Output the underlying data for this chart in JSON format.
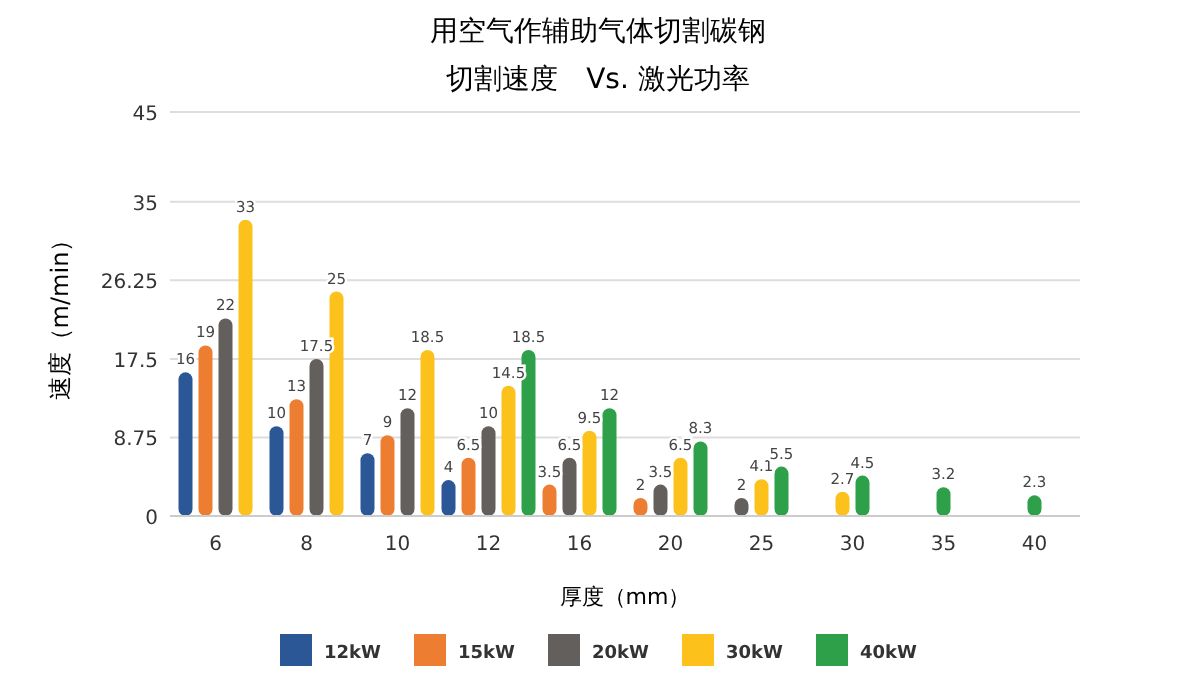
{
  "chart_data": {
    "type": "bar",
    "title": "用空气作辅助气体切割碳钢",
    "subtitle": "切割速度　Vs. 激光功率",
    "xlabel": "厚度（mm）",
    "ylabel": "速度（m/min）",
    "categories": [
      "6",
      "8",
      "10",
      "12",
      "16",
      "20",
      "25",
      "30",
      "35",
      "40"
    ],
    "series": [
      {
        "name": "12kW",
        "color": "#2b5797",
        "values": [
          16,
          10,
          7,
          4,
          null,
          null,
          null,
          null,
          null,
          null
        ]
      },
      {
        "name": "15kW",
        "color": "#ed7d31",
        "values": [
          19,
          13,
          9,
          6.5,
          3.5,
          2,
          null,
          null,
          null,
          null
        ]
      },
      {
        "name": "20kW",
        "color": "#625f5d",
        "values": [
          22,
          17.5,
          12,
          10,
          6.5,
          3.5,
          2,
          null,
          null,
          null
        ]
      },
      {
        "name": "30kW",
        "color": "#fcc21b",
        "values": [
          33,
          25,
          18.5,
          14.5,
          9.5,
          6.5,
          4.1,
          2.7,
          null,
          null
        ]
      },
      {
        "name": "40kW",
        "color": "#2ea04a",
        "values": [
          null,
          null,
          null,
          18.5,
          12,
          8.3,
          5.5,
          4.5,
          3.2,
          2.3
        ]
      }
    ],
    "ylim": [
      0,
      45
    ],
    "yticks": [
      0,
      8.75,
      17.5,
      26.25,
      35,
      45
    ],
    "grid": "y",
    "data_labels": true,
    "legend": "bottom"
  }
}
